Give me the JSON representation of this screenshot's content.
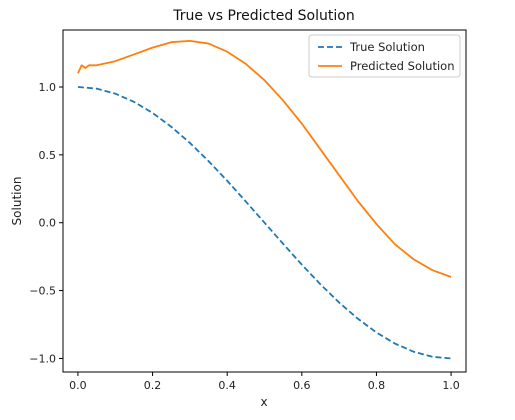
{
  "chart_data": {
    "type": "line",
    "title": "True vs Predicted Solution",
    "xlabel": "x",
    "ylabel": "Solution",
    "xlim": [
      -0.04,
      1.04
    ],
    "ylim": [
      -1.1,
      1.42
    ],
    "xticks": [
      0.0,
      0.2,
      0.4,
      0.6,
      0.8,
      1.0
    ],
    "xtick_labels": [
      "0.0",
      "0.2",
      "0.4",
      "0.6",
      "0.8",
      "1.0"
    ],
    "yticks": [
      -1.0,
      -0.5,
      0.0,
      0.5,
      1.0
    ],
    "ytick_labels": [
      "−1.0",
      "−0.5",
      "0.0",
      "0.5",
      "1.0"
    ],
    "grid": false,
    "legend_position": "top-right",
    "series": [
      {
        "name": "True Solution",
        "color": "#1f77b4",
        "style": "dashed",
        "x": [
          0.0,
          0.05,
          0.1,
          0.15,
          0.2,
          0.25,
          0.3,
          0.35,
          0.4,
          0.45,
          0.5,
          0.55,
          0.6,
          0.65,
          0.7,
          0.75,
          0.8,
          0.85,
          0.9,
          0.95,
          1.0
        ],
        "y": [
          1.0,
          0.988,
          0.951,
          0.891,
          0.809,
          0.707,
          0.588,
          0.454,
          0.309,
          0.156,
          0.0,
          -0.156,
          -0.309,
          -0.454,
          -0.588,
          -0.707,
          -0.809,
          -0.891,
          -0.951,
          -0.988,
          -1.0
        ]
      },
      {
        "name": "Predicted Solution",
        "color": "#ff7f0e",
        "style": "solid",
        "x": [
          0.0,
          0.01,
          0.02,
          0.03,
          0.05,
          0.1,
          0.15,
          0.2,
          0.25,
          0.3,
          0.35,
          0.4,
          0.45,
          0.5,
          0.55,
          0.6,
          0.65,
          0.7,
          0.75,
          0.8,
          0.85,
          0.9,
          0.95,
          1.0
        ],
        "y": [
          1.1,
          1.16,
          1.14,
          1.16,
          1.16,
          1.19,
          1.24,
          1.29,
          1.33,
          1.34,
          1.32,
          1.26,
          1.17,
          1.05,
          0.9,
          0.73,
          0.54,
          0.35,
          0.16,
          -0.01,
          -0.16,
          -0.27,
          -0.35,
          -0.4
        ]
      }
    ]
  }
}
